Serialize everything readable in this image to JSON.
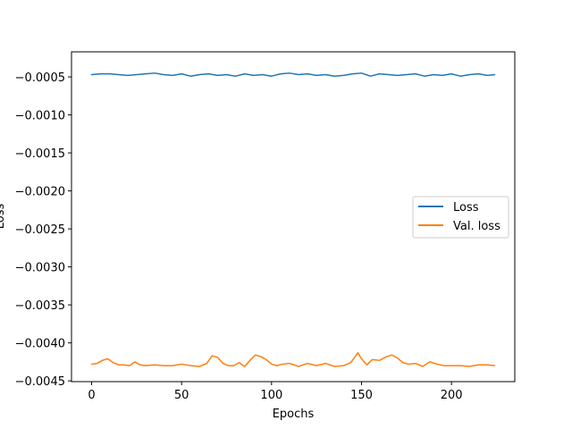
{
  "chart_data": {
    "type": "line",
    "title": "",
    "xlabel": "Epochs",
    "ylabel": "Loss",
    "xlim": [
      -11.2,
      235.2
    ],
    "ylim": [
      -0.00451,
      -0.00017
    ],
    "xticks": [
      0,
      50,
      100,
      150,
      200
    ],
    "xtick_labels": [
      "0",
      "50",
      "100",
      "150",
      "200"
    ],
    "yticks": [
      -0.0005,
      -0.001,
      -0.0015,
      -0.002,
      -0.0025,
      -0.003,
      -0.0035,
      -0.004,
      -0.0045
    ],
    "ytick_labels": [
      "−0.0005",
      "−0.0010",
      "−0.0015",
      "−0.0020",
      "−0.0025",
      "−0.0030",
      "−0.0035",
      "−0.0040",
      "−0.0045"
    ],
    "grid": false,
    "legend_position": "center-right",
    "series": [
      {
        "name": "Loss",
        "color": "#1f77b4",
        "x": [
          0,
          5,
          10,
          15,
          20,
          25,
          30,
          35,
          40,
          45,
          50,
          55,
          60,
          65,
          70,
          75,
          80,
          85,
          90,
          95,
          100,
          105,
          110,
          115,
          120,
          125,
          130,
          135,
          140,
          145,
          150,
          155,
          160,
          165,
          170,
          175,
          180,
          185,
          190,
          195,
          200,
          205,
          210,
          215,
          220,
          224
        ],
        "y": [
          -0.00047,
          -0.00046,
          -0.00046,
          -0.00047,
          -0.00048,
          -0.00047,
          -0.00046,
          -0.00045,
          -0.00047,
          -0.00048,
          -0.00046,
          -0.00049,
          -0.00047,
          -0.00046,
          -0.00048,
          -0.00047,
          -0.00049,
          -0.00046,
          -0.00048,
          -0.00047,
          -0.00049,
          -0.00046,
          -0.00045,
          -0.00047,
          -0.00046,
          -0.00048,
          -0.00047,
          -0.00049,
          -0.00048,
          -0.00046,
          -0.00045,
          -0.00049,
          -0.00046,
          -0.00047,
          -0.00048,
          -0.00047,
          -0.00046,
          -0.00049,
          -0.00047,
          -0.00048,
          -0.00046,
          -0.00049,
          -0.00047,
          -0.00046,
          -0.00048,
          -0.00047
        ]
      },
      {
        "name": "Val. loss",
        "color": "#ff7f0e",
        "x": [
          0,
          3,
          6,
          9,
          12,
          15,
          18,
          21,
          24,
          27,
          30,
          35,
          40,
          45,
          50,
          55,
          60,
          64,
          67,
          70,
          73,
          76,
          79,
          82,
          85,
          88,
          91,
          94,
          97,
          100,
          103,
          106,
          110,
          115,
          120,
          125,
          130,
          135,
          140,
          144,
          148,
          150,
          153,
          156,
          160,
          164,
          167,
          170,
          173,
          176,
          180,
          184,
          188,
          192,
          196,
          200,
          205,
          210,
          215,
          220,
          224
        ],
        "y": [
          -0.00428,
          -0.00427,
          -0.00423,
          -0.00421,
          -0.00426,
          -0.00429,
          -0.00429,
          -0.0043,
          -0.00425,
          -0.00429,
          -0.0043,
          -0.00429,
          -0.0043,
          -0.0043,
          -0.00428,
          -0.0043,
          -0.00431,
          -0.00427,
          -0.00417,
          -0.00419,
          -0.00427,
          -0.0043,
          -0.0043,
          -0.00426,
          -0.00431,
          -0.00423,
          -0.00416,
          -0.00418,
          -0.00422,
          -0.00428,
          -0.0043,
          -0.00428,
          -0.00427,
          -0.00431,
          -0.00427,
          -0.0043,
          -0.00427,
          -0.00431,
          -0.0043,
          -0.00426,
          -0.00413,
          -0.00421,
          -0.00429,
          -0.00422,
          -0.00423,
          -0.00418,
          -0.00416,
          -0.0042,
          -0.00426,
          -0.00428,
          -0.00427,
          -0.00431,
          -0.00425,
          -0.00428,
          -0.0043,
          -0.0043,
          -0.0043,
          -0.00431,
          -0.00429,
          -0.00429,
          -0.0043
        ]
      }
    ]
  }
}
